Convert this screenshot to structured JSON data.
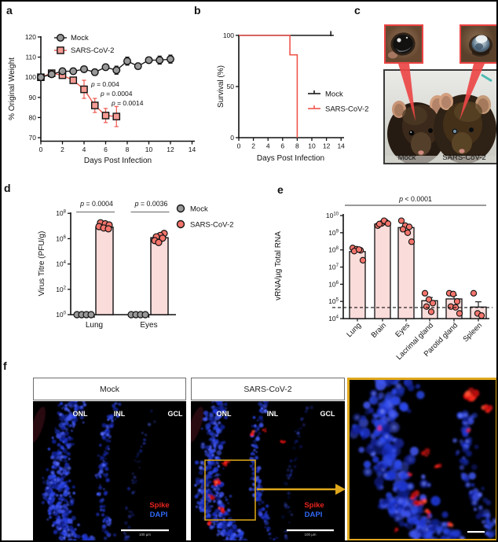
{
  "panels": {
    "a": "a",
    "b": "b",
    "c": "c",
    "d": "d",
    "e": "e",
    "f": "f"
  },
  "colors": {
    "sars_red": "#F0564E",
    "sars_marker_fill": "#F59B94",
    "mock_gray": "#999999",
    "bar_fill": "#FADCDA",
    "dot_fill": "#F4756C",
    "gold": "#DFA81C",
    "roi_gold": "#D4A017",
    "inset_red": "#EC4343",
    "spike_red": "#E8241E",
    "dapi_blue": "#3168F5"
  },
  "panel_c": {
    "mock_label": "Mock",
    "sars_label": "SARS-CoV-2"
  },
  "panel_f": {
    "images": [
      {
        "title": "Mock",
        "layers": [
          "ONL",
          "INL",
          "GCL"
        ],
        "spike_label": "Spike",
        "dapi_label": "DAPI",
        "scalebar_label": "100 µm"
      },
      {
        "title": "SARS-CoV-2",
        "layers": [
          "ONL",
          "INL",
          "GCL"
        ],
        "spike_label": "Spike",
        "dapi_label": "DAPI",
        "scalebar_label": "100 µm"
      }
    ]
  },
  "chart_data": [
    {
      "id": "a",
      "type": "line",
      "xlabel": "Days Post Infection",
      "ylabel": "% Original Weight",
      "xlim": [
        0,
        14
      ],
      "xticks": [
        0,
        2,
        4,
        6,
        8,
        10,
        12,
        14
      ],
      "ylim": [
        70,
        120
      ],
      "yticks": [
        70,
        80,
        90,
        100,
        110,
        120
      ],
      "series": [
        {
          "name": "SARS-CoV-2",
          "marker": "square",
          "color": "#F0564E",
          "fill": "#F59B94",
          "x": [
            0,
            1,
            2,
            3,
            4,
            5,
            6,
            7
          ],
          "y": [
            100,
            102,
            101,
            98.5,
            94,
            86,
            81,
            80.5
          ],
          "err": [
            1,
            1.5,
            1.5,
            1.5,
            4.5,
            3.5,
            3.5,
            5
          ]
        },
        {
          "name": "Mock",
          "marker": "circle",
          "color": "#1a1a1a",
          "fill": "#999999",
          "x": [
            0,
            1,
            2,
            3,
            4,
            5,
            6,
            7,
            8,
            9,
            10,
            11,
            12
          ],
          "y": [
            100,
            101.5,
            103,
            103,
            104,
            102.5,
            105,
            103.5,
            108,
            105.5,
            108.5,
            108.5,
            109
          ],
          "err": [
            1,
            1.5,
            1.5,
            1.5,
            1.5,
            1.5,
            1.5,
            2,
            2,
            1.5,
            1.5,
            2,
            2
          ]
        }
      ],
      "annotations": [
        "p = 0.004",
        "p = 0.0004",
        "p = 0.0014"
      ]
    },
    {
      "id": "b",
      "type": "step",
      "xlabel": "Days Post Infection",
      "ylabel": "Survival (%)",
      "xlim": [
        0,
        14
      ],
      "xticks": [
        0,
        2,
        4,
        6,
        8,
        10,
        12,
        14
      ],
      "ylim": [
        0,
        100
      ],
      "yticks": [
        0,
        50,
        100
      ],
      "series": [
        {
          "name": "Mock",
          "color": "#1a1a1a",
          "points": [
            [
              0,
              100
            ],
            [
              13,
              100
            ]
          ],
          "censor": 12.6
        },
        {
          "name": "SARS-CoV-2",
          "color": "#F0564E",
          "points": [
            [
              0,
              100
            ],
            [
              7,
              100
            ],
            [
              7,
              81
            ],
            [
              8,
              81
            ],
            [
              8,
              0
            ]
          ]
        }
      ]
    },
    {
      "id": "d",
      "type": "scatter-bar",
      "ylabel": "Virus Titre (PFU/g)",
      "yscale": "log",
      "ytick_exponents": [
        0,
        2,
        4,
        6,
        8
      ],
      "groups": [
        "Lung",
        "Eyes"
      ],
      "pvalues": [
        "p = 0.0004",
        "p = 0.0036"
      ],
      "legend": [
        {
          "name": "Mock",
          "fill": "#999999"
        },
        {
          "name": "SARS-CoV-2",
          "fill": "#F4756C"
        }
      ],
      "mock_points": {
        "Lung": [
          1,
          1,
          1,
          1
        ],
        "Eyes": [
          1,
          1,
          1,
          1
        ]
      },
      "bar_means": {
        "Lung": 8000000.0,
        "Eyes": 1200000.0
      },
      "sars_points": {
        "Lung": [
          18000000.0,
          15000000.0,
          12000000.0,
          9000000.0,
          7000000.0,
          6000000.0
        ],
        "Eyes": [
          2600000.0,
          1800000.0,
          1400000.0,
          1100000.0,
          700000.0,
          500000.0
        ]
      }
    },
    {
      "id": "e",
      "type": "bar-scatter",
      "ylabel": "vRNA/µg Total RNA",
      "yscale": "log",
      "ytick_exponents": [
        4,
        5,
        6,
        7,
        8,
        9,
        10
      ],
      "categories": [
        "Lung",
        "Brain",
        "Eyes",
        "Lacrimal gland",
        "Parotid gland",
        "Spleen"
      ],
      "bar_means": [
        80000000.0,
        3200000000.0,
        2000000000.0,
        110000.0,
        140000.0,
        47000.0
      ],
      "err_high": [
        105000000.0,
        3900000000.0,
        2900000000.0,
        170000.0,
        230000.0,
        95000.0
      ],
      "points": [
        [
          130000000.0,
          110000000.0,
          95000000.0,
          85000000.0,
          105000000.0,
          25000000.0
        ],
        [
          2600000000.0,
          3500000000.0,
          4200000000.0,
          3200000000.0,
          5000000000.0,
          3400000000.0
        ],
        [
          5000000000.0,
          2600000000.0,
          2200000000.0,
          1600000000.0,
          1000000000.0,
          300000000.0
        ],
        [
          300000.0,
          130000.0,
          80000.0,
          50000.0,
          25000.0
        ],
        [
          300000.0,
          270000.0,
          100000.0,
          50000.0,
          45000.0,
          20000.0
        ],
        [
          300000.0,
          20000.0,
          15000.0
        ]
      ],
      "lod": 44000.0,
      "pvalue": "p < 0.0001"
    }
  ]
}
